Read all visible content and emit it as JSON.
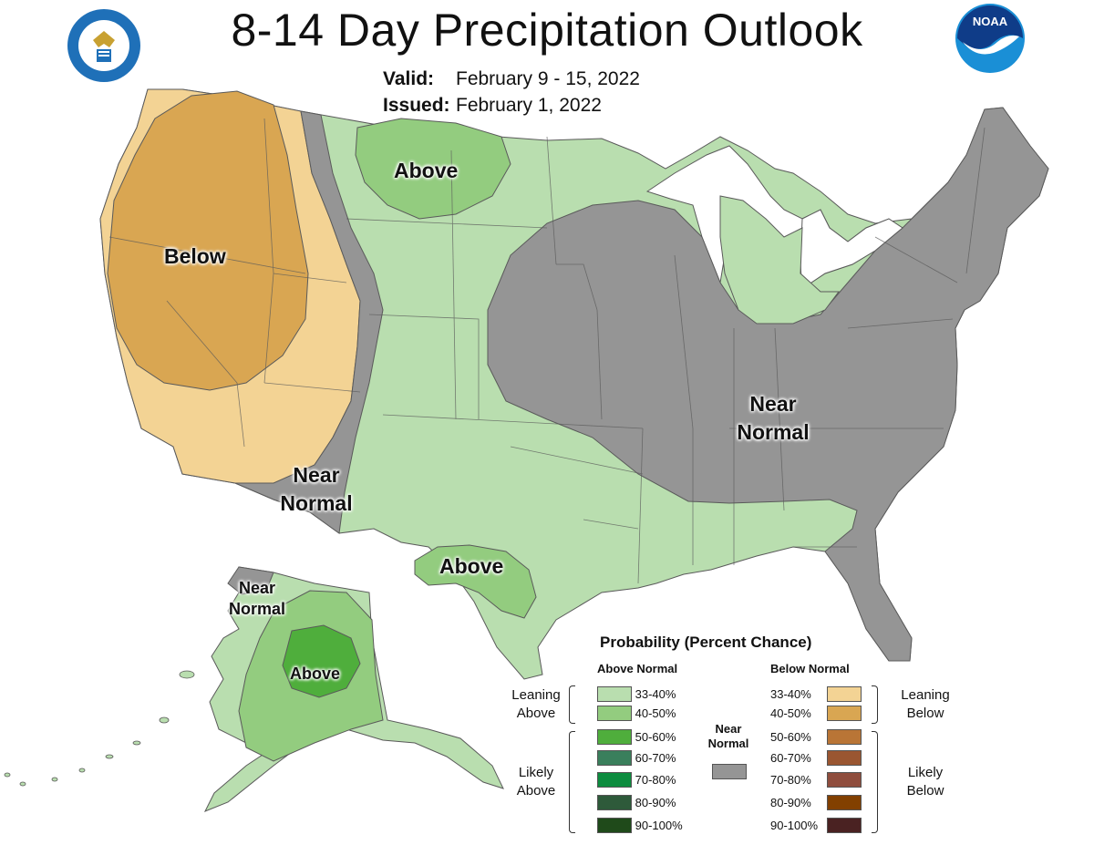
{
  "header": {
    "title": "8-14 Day Precipitation Outlook",
    "valid_label": "Valid:",
    "valid_value": "February 9 - 15, 2022",
    "issued_label": "Issued:",
    "issued_value": "February 1, 2022"
  },
  "logos": {
    "left": "doc-seal-icon",
    "right": "noaa-logo-icon",
    "noaa_text": "NOAA"
  },
  "map_labels": {
    "west_below": "Below",
    "north_above": "Above",
    "sw_near_1": "Near",
    "sw_near_2": "Normal",
    "east_near_1": "Near",
    "east_near_2": "Normal",
    "texas_above": "Above",
    "ak_near_1": "Near",
    "ak_near_2": "Normal",
    "ak_above": "Above"
  },
  "colors": {
    "above_33_40": "#b9deaf",
    "above_40_50": "#93cc7f",
    "above_50_60": "#4fae3c",
    "above_60_70": "#3a7f5c",
    "above_70_80": "#0d8c3f",
    "above_80_90": "#2e5a3a",
    "above_90_100": "#1f4a1a",
    "below_33_40": "#f3d394",
    "below_40_50": "#d9a652",
    "below_50_60": "#b97536",
    "below_60_70": "#9a5631",
    "below_70_80": "#8f4d3d",
    "below_80_90": "#824000",
    "below_90_100": "#4a2222",
    "near_normal": "#959595",
    "boundary": "#5a5a5a"
  },
  "legend": {
    "title": "Probability (Percent Chance)",
    "above_header": "Above Normal",
    "below_header": "Below Normal",
    "near_label_1": "Near",
    "near_label_2": "Normal",
    "leaning_above_1": "Leaning",
    "leaning_above_2": "Above",
    "likely_above_1": "Likely",
    "likely_above_2": "Above",
    "leaning_below_1": "Leaning",
    "leaning_below_2": "Below",
    "likely_below_1": "Likely",
    "likely_below_2": "Below",
    "above_rows": [
      "33-40%",
      "40-50%",
      "50-60%",
      "60-70%",
      "70-80%",
      "80-90%",
      "90-100%"
    ],
    "below_rows": [
      "33-40%",
      "40-50%",
      "50-60%",
      "60-70%",
      "70-80%",
      "80-90%",
      "90-100%"
    ]
  }
}
